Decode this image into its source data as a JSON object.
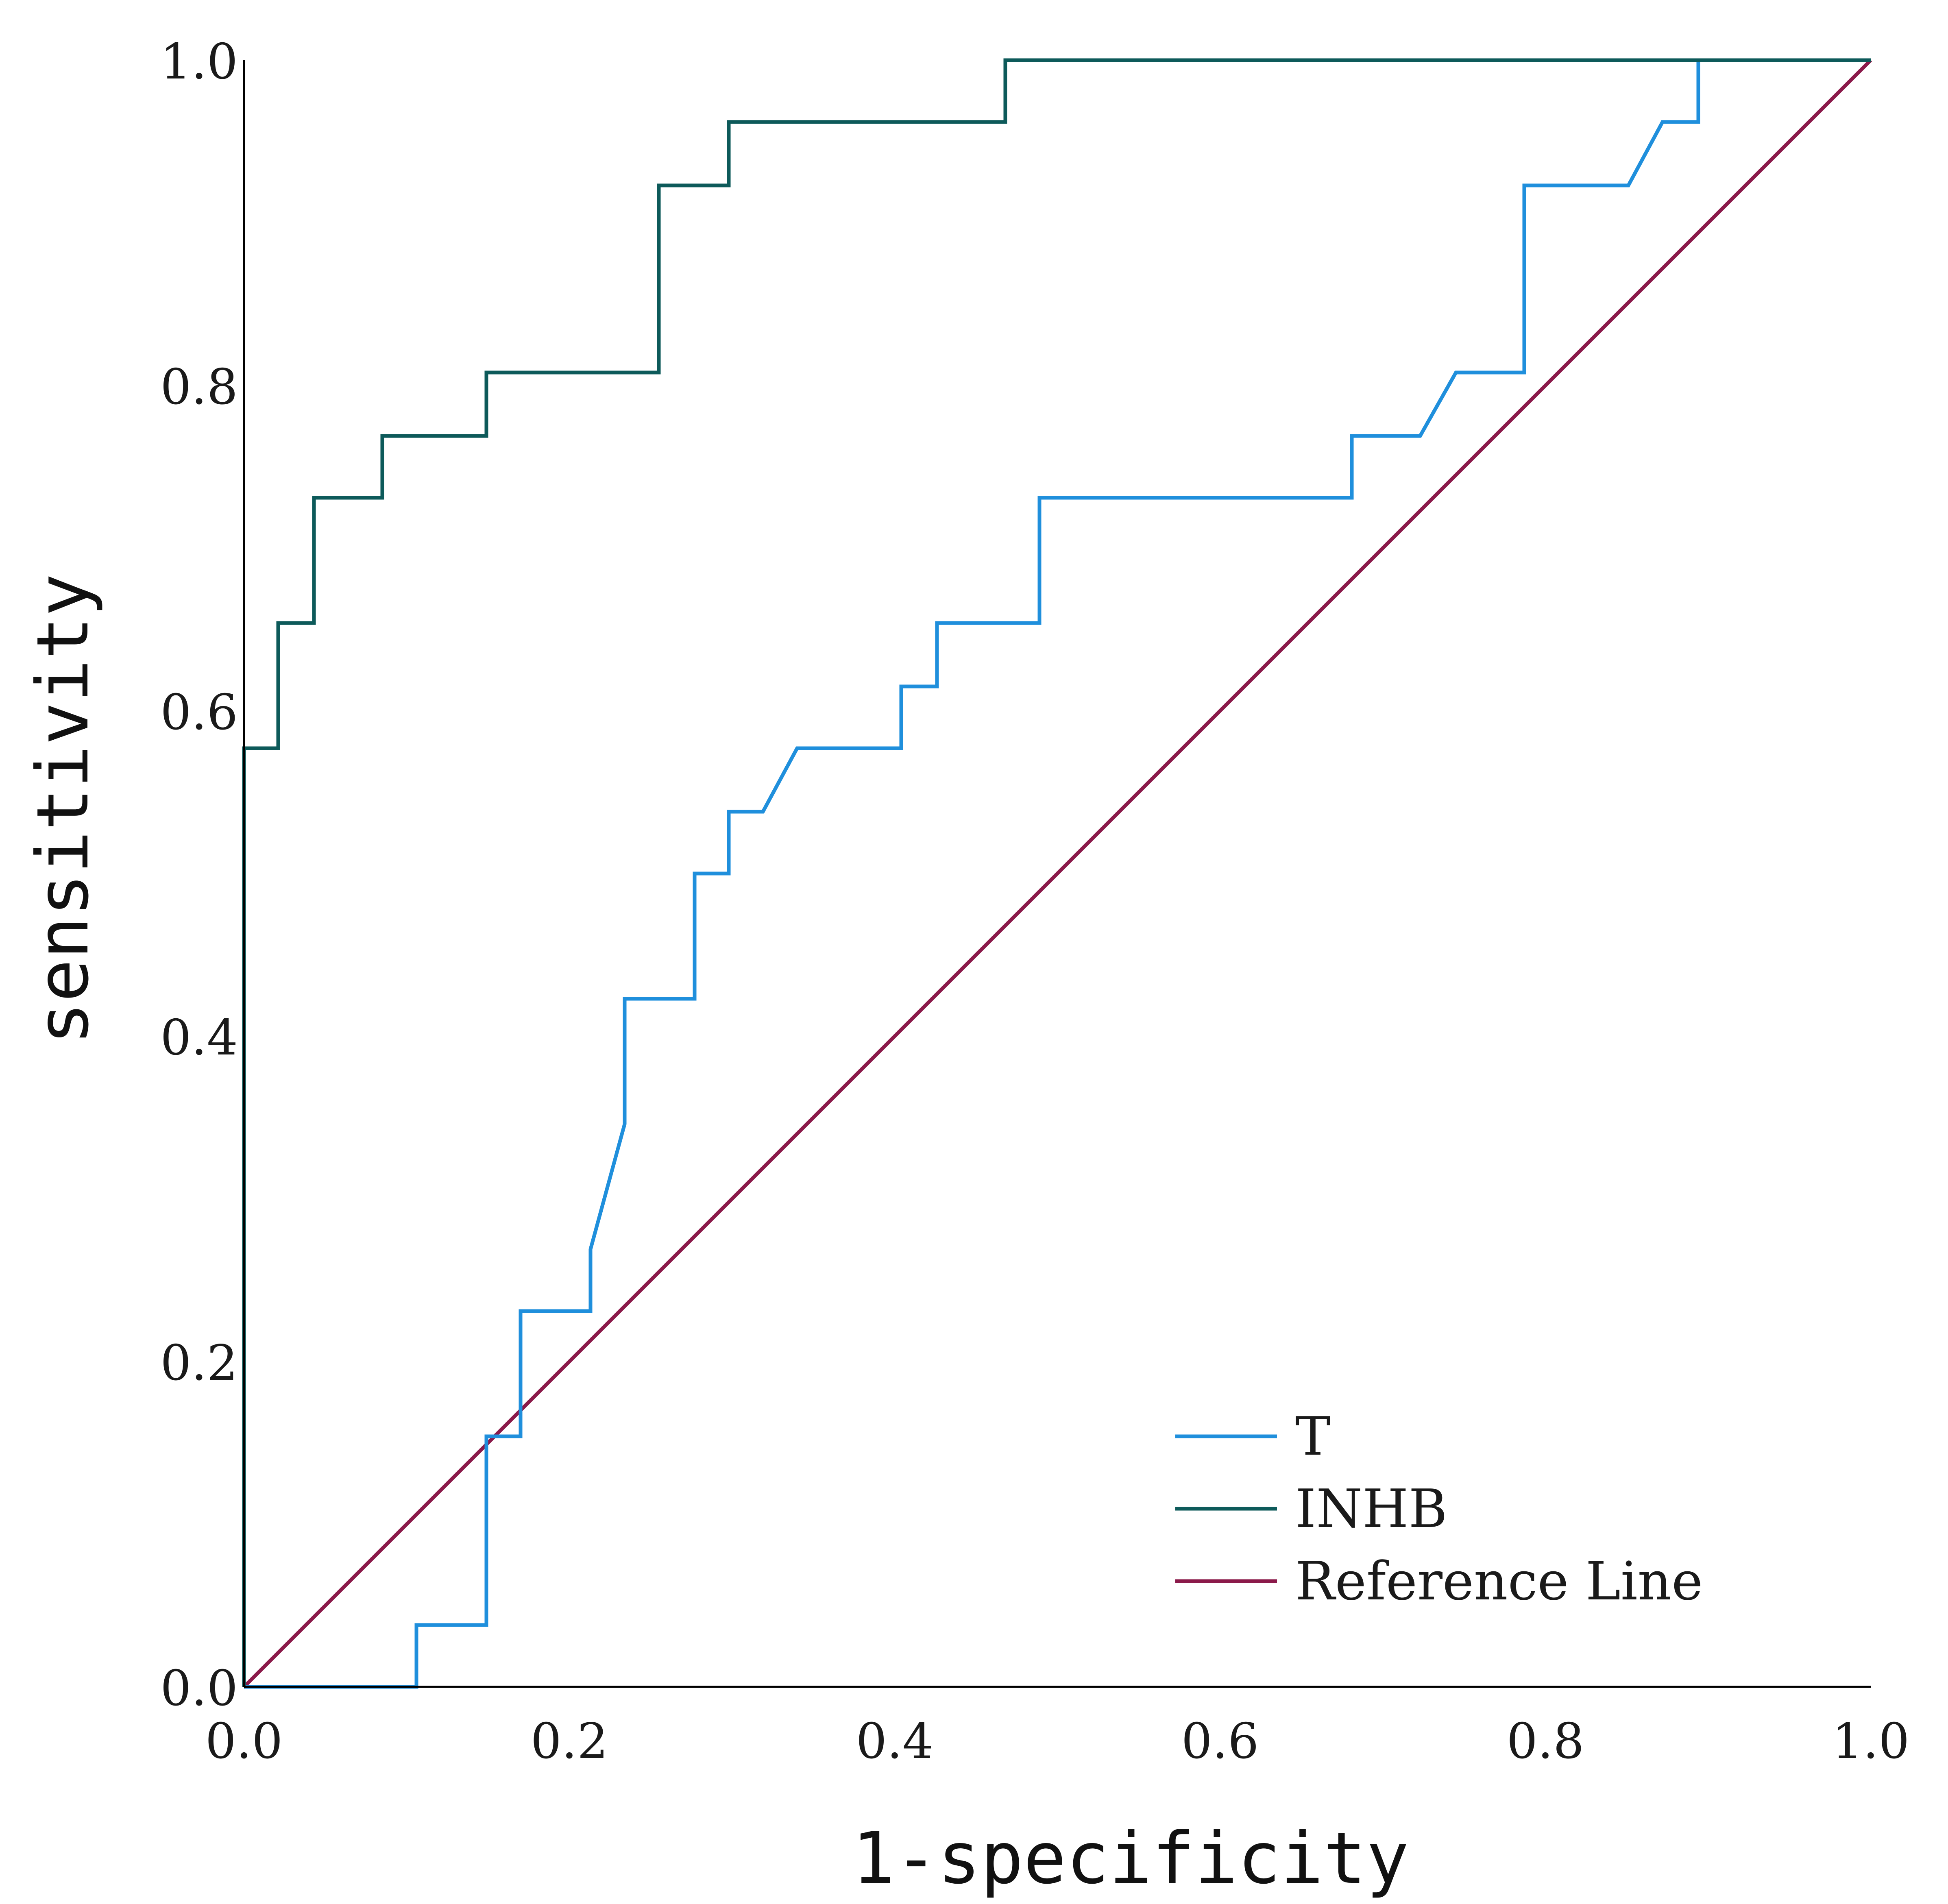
{
  "chart_data": {
    "type": "line",
    "title": "",
    "xlabel": "1-specificity",
    "ylabel": "sensitivity",
    "xlim": [
      0,
      1
    ],
    "ylim": [
      0,
      1
    ],
    "x_ticks": [
      "0.0",
      "0.2",
      "0.4",
      "0.6",
      "0.8",
      "1.0"
    ],
    "y_ticks": [
      "0.0",
      "0.2",
      "0.4",
      "0.6",
      "0.8",
      "1.0"
    ],
    "x_tick_values": [
      0,
      0.2,
      0.4,
      0.6,
      0.8,
      1.0
    ],
    "y_tick_values": [
      0,
      0.2,
      0.4,
      0.6,
      0.8,
      1.0
    ],
    "grid": false,
    "legend_position": "bottom-right",
    "series": [
      {
        "name": "T",
        "color": "#1f8fdc",
        "points": [
          [
            0.0,
            0.0
          ],
          [
            0.106,
            0.0
          ],
          [
            0.106,
            0.038
          ],
          [
            0.149,
            0.038
          ],
          [
            0.149,
            0.154
          ],
          [
            0.17,
            0.154
          ],
          [
            0.17,
            0.231
          ],
          [
            0.213,
            0.231
          ],
          [
            0.213,
            0.269
          ],
          [
            0.234,
            0.346
          ],
          [
            0.234,
            0.423
          ],
          [
            0.277,
            0.423
          ],
          [
            0.277,
            0.5
          ],
          [
            0.298,
            0.5
          ],
          [
            0.298,
            0.538
          ],
          [
            0.319,
            0.538
          ],
          [
            0.34,
            0.577
          ],
          [
            0.404,
            0.577
          ],
          [
            0.404,
            0.615
          ],
          [
            0.426,
            0.615
          ],
          [
            0.426,
            0.654
          ],
          [
            0.489,
            0.654
          ],
          [
            0.489,
            0.731
          ],
          [
            0.681,
            0.731
          ],
          [
            0.681,
            0.769
          ],
          [
            0.723,
            0.769
          ],
          [
            0.745,
            0.808
          ],
          [
            0.787,
            0.808
          ],
          [
            0.787,
            0.923
          ],
          [
            0.851,
            0.923
          ],
          [
            0.872,
            0.962
          ],
          [
            0.894,
            0.962
          ],
          [
            0.894,
            1.0
          ],
          [
            1.0,
            1.0
          ]
        ]
      },
      {
        "name": "INHB",
        "color": "#0d5a5a",
        "points": [
          [
            0.0,
            0.0
          ],
          [
            0.0,
            0.577
          ],
          [
            0.021,
            0.577
          ],
          [
            0.021,
            0.654
          ],
          [
            0.043,
            0.654
          ],
          [
            0.043,
            0.731
          ],
          [
            0.085,
            0.731
          ],
          [
            0.085,
            0.769
          ],
          [
            0.149,
            0.769
          ],
          [
            0.149,
            0.808
          ],
          [
            0.255,
            0.808
          ],
          [
            0.255,
            0.923
          ],
          [
            0.298,
            0.923
          ],
          [
            0.298,
            0.962
          ],
          [
            0.468,
            0.962
          ],
          [
            0.468,
            1.0
          ],
          [
            1.0,
            1.0
          ]
        ]
      },
      {
        "name": "Reference Line",
        "color": "#8b1a4a",
        "points": [
          [
            0.0,
            0.0
          ],
          [
            1.0,
            1.0
          ]
        ]
      }
    ]
  }
}
